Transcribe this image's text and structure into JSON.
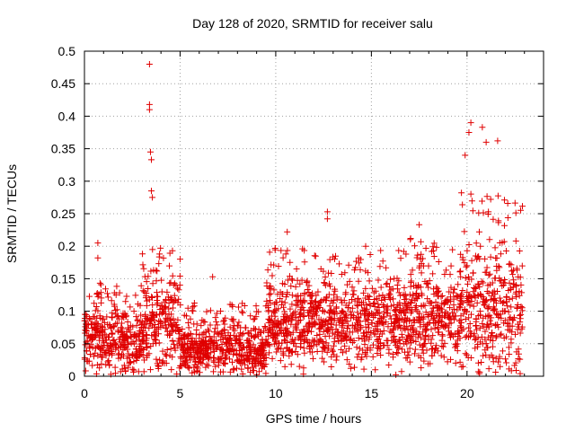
{
  "chart_data": {
    "type": "scatter",
    "title": "Day 128 of 2020, SRMTID for receiver salu",
    "xlabel": "GPS time / hours",
    "ylabel": "SRMTID / TECUs",
    "xlim": [
      0,
      24
    ],
    "ylim": [
      0,
      0.5
    ],
    "x_ticks": [
      "0",
      "5",
      "10",
      "15",
      "20"
    ],
    "y_ticks": [
      "0",
      "0.05",
      "0.1",
      "0.15",
      "0.2",
      "0.25",
      "0.3",
      "0.35",
      "0.4",
      "0.45",
      "0.5"
    ],
    "grid": true,
    "marker": "+",
    "marker_color": "#e00000",
    "series_name": "salu",
    "highlight_points": [
      {
        "x": 3.4,
        "y": 0.48
      },
      {
        "x": 3.4,
        "y": 0.418
      },
      {
        "x": 3.4,
        "y": 0.41
      },
      {
        "x": 3.45,
        "y": 0.345
      },
      {
        "x": 3.5,
        "y": 0.333
      },
      {
        "x": 3.5,
        "y": 0.285
      },
      {
        "x": 3.55,
        "y": 0.275
      },
      {
        "x": 0.7,
        "y": 0.205
      },
      {
        "x": 0.7,
        "y": 0.182
      },
      {
        "x": 20.2,
        "y": 0.39
      },
      {
        "x": 20.1,
        "y": 0.375
      },
      {
        "x": 20.8,
        "y": 0.383
      },
      {
        "x": 21.0,
        "y": 0.36
      },
      {
        "x": 21.6,
        "y": 0.362
      },
      {
        "x": 19.9,
        "y": 0.34
      },
      {
        "x": 12.7,
        "y": 0.253
      },
      {
        "x": 12.7,
        "y": 0.242
      },
      {
        "x": 10.6,
        "y": 0.222
      },
      {
        "x": 17.5,
        "y": 0.233
      },
      {
        "x": 6.7,
        "y": 0.153
      },
      {
        "x": 14.7,
        "y": 0.2
      },
      {
        "x": 4.6,
        "y": 0.193
      },
      {
        "x": 5.0,
        "y": 0.18
      }
    ],
    "generated_cloud": {
      "count": 2600,
      "segments": [
        {
          "x0": 0,
          "x1": 3.0,
          "base": 0.055,
          "spread": 0.035
        },
        {
          "x0": 3.0,
          "x1": 5.0,
          "base": 0.07,
          "spread": 0.05
        },
        {
          "x0": 5.0,
          "x1": 9.5,
          "base": 0.04,
          "spread": 0.028
        },
        {
          "x0": 9.5,
          "x1": 17.0,
          "base": 0.08,
          "spread": 0.045
        },
        {
          "x0": 17.0,
          "x1": 19.5,
          "base": 0.085,
          "spread": 0.05
        },
        {
          "x0": 19.5,
          "x1": 22.9,
          "base": 0.1,
          "spread": 0.075
        }
      ]
    }
  }
}
